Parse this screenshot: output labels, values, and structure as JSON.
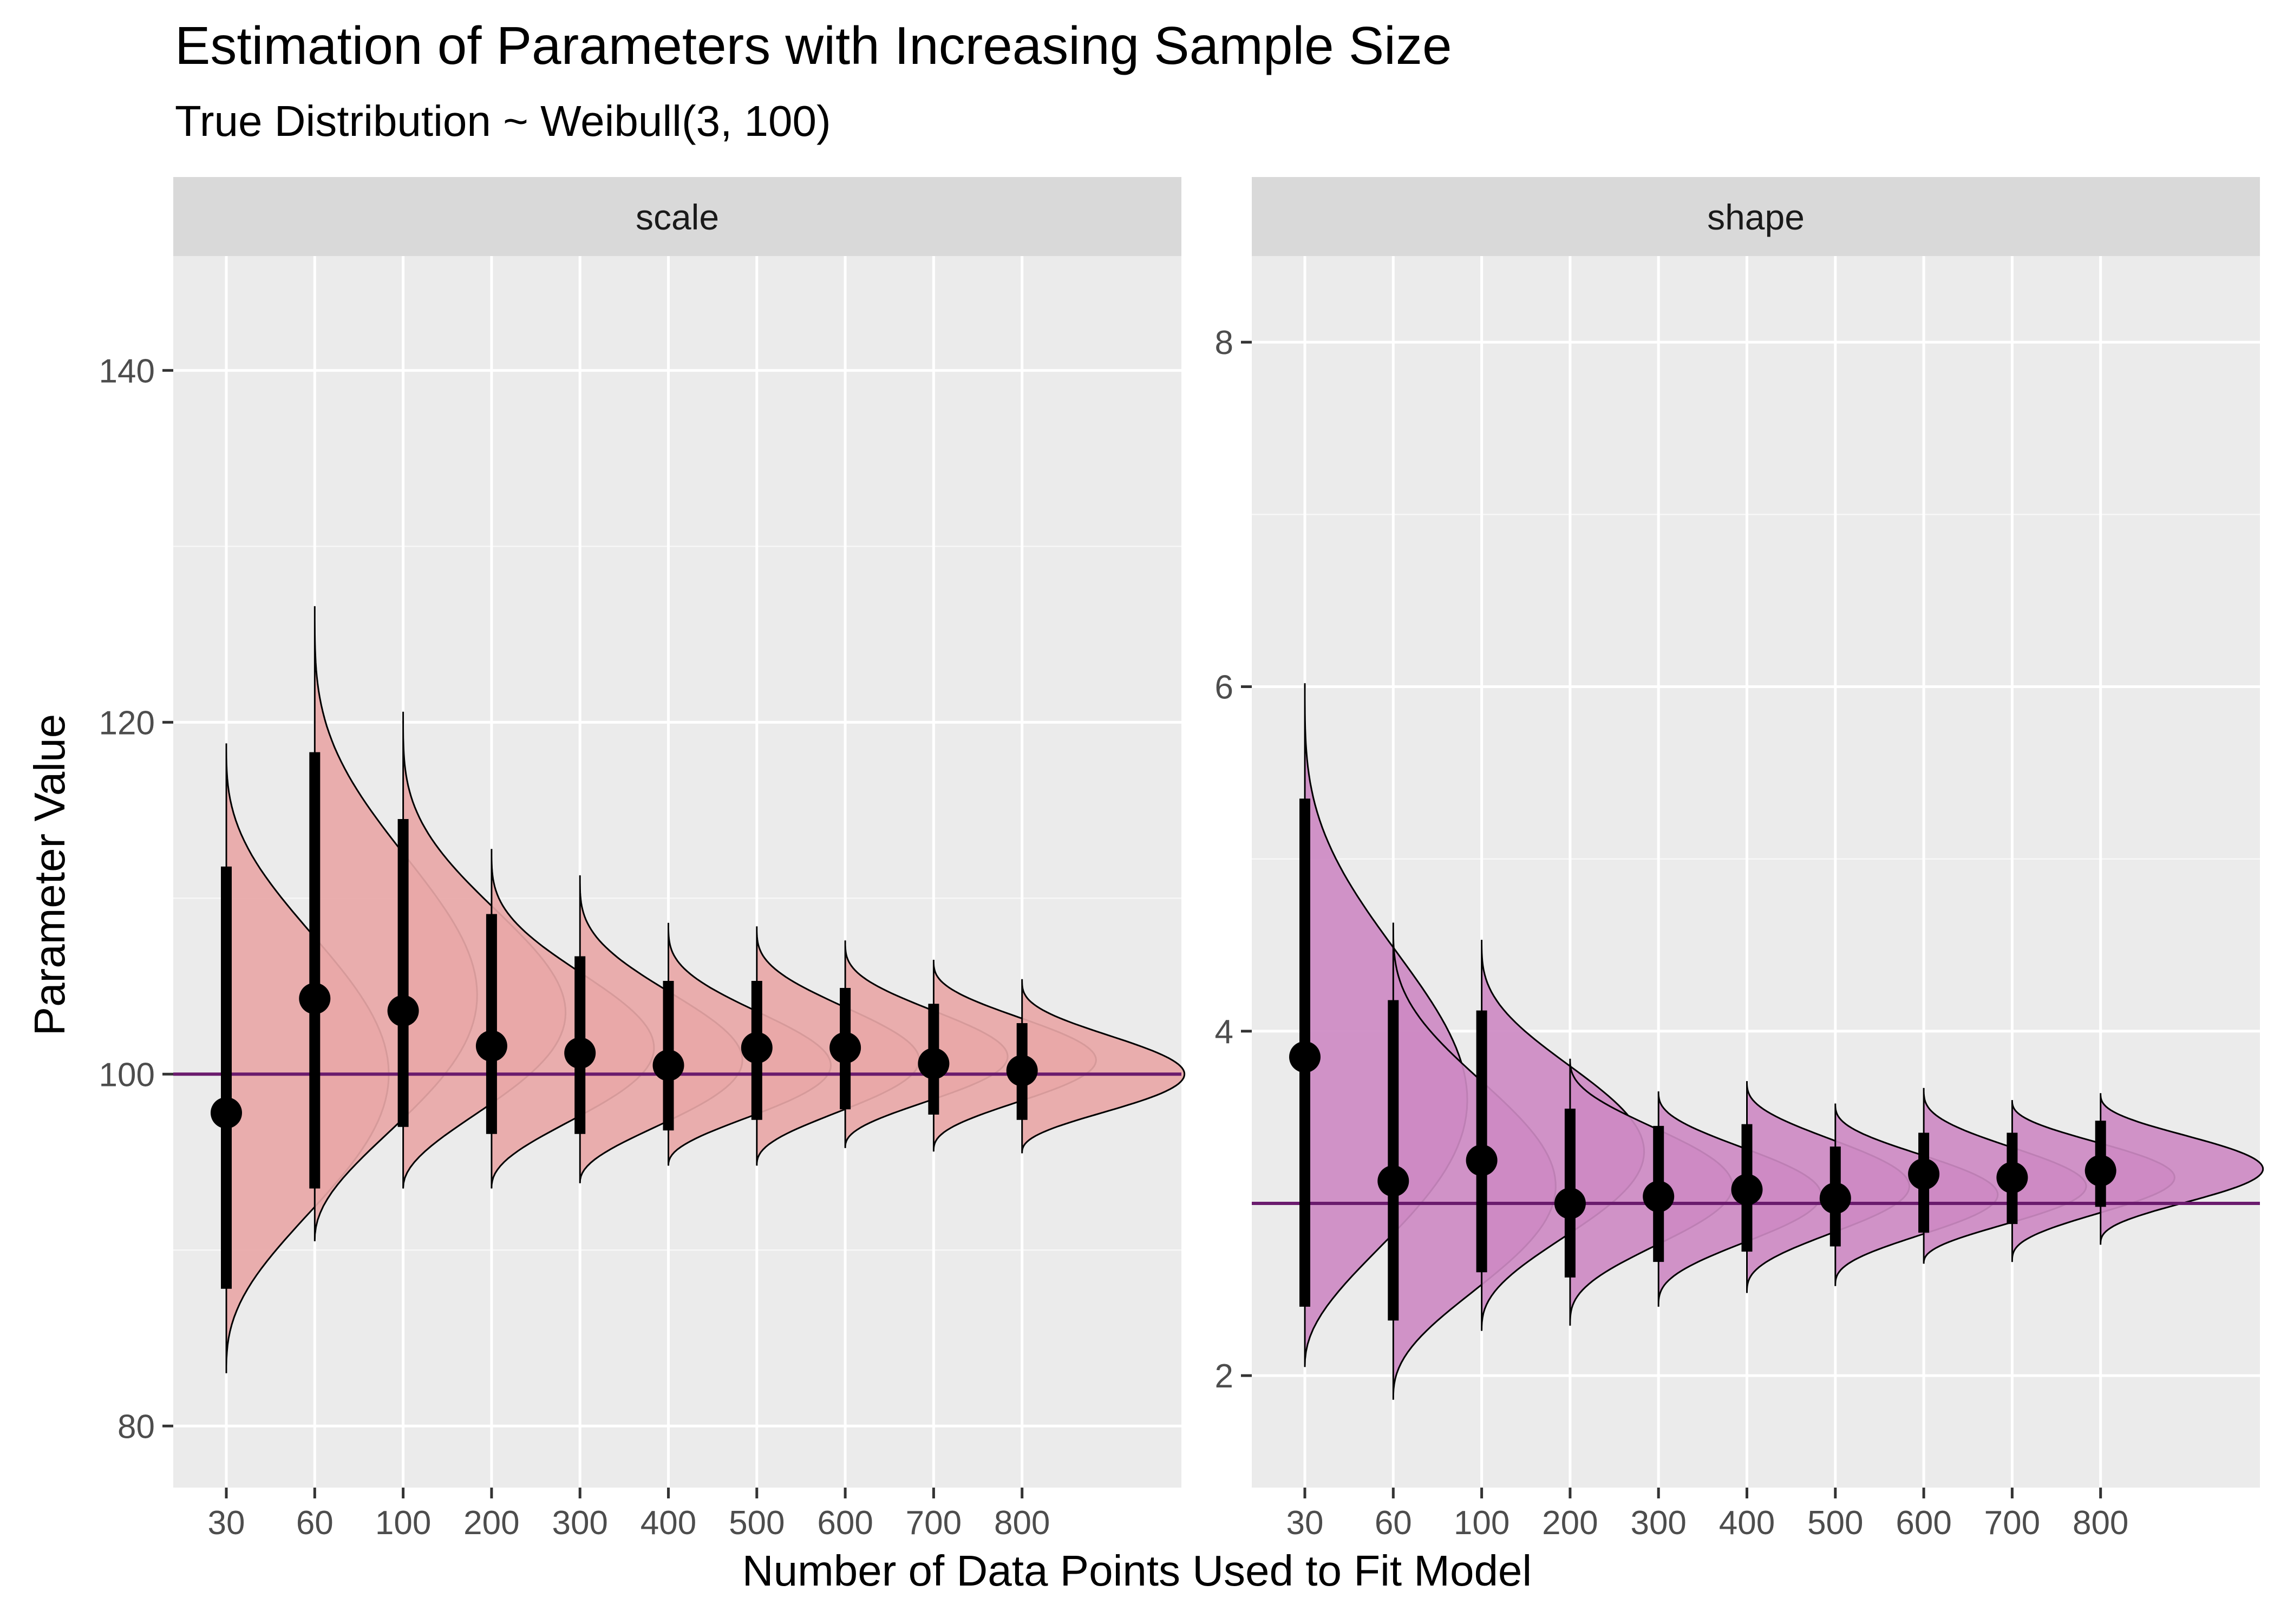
{
  "chart_data": {
    "type": "violin",
    "title": "Estimation of Parameters with Increasing Sample Size",
    "subtitle": "True Distribution ~ Weibull(3, 100)",
    "xlabel": "Number of Data Points Used to Fit Model",
    "ylabel": "Parameter Value",
    "categories": [
      "30",
      "60",
      "100",
      "200",
      "300",
      "400",
      "500",
      "600",
      "700",
      "800"
    ],
    "grid": true,
    "panels": [
      {
        "name": "scale",
        "true_value": 100,
        "ylim": [
          76.5,
          146.5
        ],
        "yticks": [
          80,
          100,
          120,
          140
        ],
        "fill_color": "#e8a7a7",
        "line_color": "#6a1b6d",
        "points": [
          {
            "x": "30",
            "estimate": 97.8,
            "lower": 87.8,
            "upper": 111.8,
            "min": 83.0,
            "max": 118.8,
            "mode": 100.0
          },
          {
            "x": "60",
            "estimate": 104.3,
            "lower": 93.5,
            "upper": 118.3,
            "min": 90.5,
            "max": 126.6,
            "mode": 104.5
          },
          {
            "x": "100",
            "estimate": 103.6,
            "lower": 97.0,
            "upper": 114.5,
            "min": 93.5,
            "max": 120.6,
            "mode": 103.5
          },
          {
            "x": "200",
            "estimate": 101.6,
            "lower": 96.6,
            "upper": 109.1,
            "min": 93.5,
            "max": 112.8,
            "mode": 101.5
          },
          {
            "x": "300",
            "estimate": 101.2,
            "lower": 96.6,
            "upper": 106.7,
            "min": 93.8,
            "max": 111.3,
            "mode": 100.8
          },
          {
            "x": "400",
            "estimate": 100.5,
            "lower": 96.8,
            "upper": 105.3,
            "min": 94.8,
            "max": 108.6,
            "mode": 100.5
          },
          {
            "x": "500",
            "estimate": 101.5,
            "lower": 97.4,
            "upper": 105.3,
            "min": 94.8,
            "max": 108.4,
            "mode": 100.8
          },
          {
            "x": "600",
            "estimate": 101.5,
            "lower": 98.0,
            "upper": 104.9,
            "min": 95.8,
            "max": 107.6,
            "mode": 101.0
          },
          {
            "x": "700",
            "estimate": 100.6,
            "lower": 97.7,
            "upper": 104.0,
            "min": 95.6,
            "max": 106.5,
            "mode": 100.8
          },
          {
            "x": "800",
            "estimate": 100.2,
            "lower": 97.4,
            "upper": 102.9,
            "min": 95.5,
            "max": 105.4,
            "mode": 100.0
          }
        ]
      },
      {
        "name": "shape",
        "true_value": 3,
        "ylim": [
          1.35,
          8.5
        ],
        "yticks": [
          2,
          4,
          6,
          8
        ],
        "fill_color": "#cd8ac3",
        "line_color": "#6a1b6d",
        "points": [
          {
            "x": "30",
            "estimate": 3.85,
            "lower": 2.4,
            "upper": 5.35,
            "min": 2.05,
            "max": 6.02,
            "mode": 3.6
          },
          {
            "x": "60",
            "estimate": 3.13,
            "lower": 2.32,
            "upper": 4.18,
            "min": 1.86,
            "max": 4.63,
            "mode": 3.1
          },
          {
            "x": "100",
            "estimate": 3.25,
            "lower": 2.6,
            "upper": 4.12,
            "min": 2.26,
            "max": 4.53,
            "mode": 3.3
          },
          {
            "x": "200",
            "estimate": 3.0,
            "lower": 2.57,
            "upper": 3.55,
            "min": 2.29,
            "max": 3.84,
            "mode": 3.1
          },
          {
            "x": "300",
            "estimate": 3.04,
            "lower": 2.66,
            "upper": 3.45,
            "min": 2.4,
            "max": 3.65,
            "mode": 3.05
          },
          {
            "x": "400",
            "estimate": 3.08,
            "lower": 2.72,
            "upper": 3.46,
            "min": 2.48,
            "max": 3.71,
            "mode": 3.1
          },
          {
            "x": "500",
            "estimate": 3.03,
            "lower": 2.75,
            "upper": 3.33,
            "min": 2.52,
            "max": 3.58,
            "mode": 3.05
          },
          {
            "x": "600",
            "estimate": 3.17,
            "lower": 2.83,
            "upper": 3.41,
            "min": 2.65,
            "max": 3.67,
            "mode": 3.1
          },
          {
            "x": "700",
            "estimate": 3.15,
            "lower": 2.88,
            "upper": 3.41,
            "min": 2.66,
            "max": 3.6,
            "mode": 3.15
          },
          {
            "x": "800",
            "estimate": 3.19,
            "lower": 2.98,
            "upper": 3.48,
            "min": 2.76,
            "max": 3.64,
            "mode": 3.2
          }
        ]
      }
    ]
  }
}
